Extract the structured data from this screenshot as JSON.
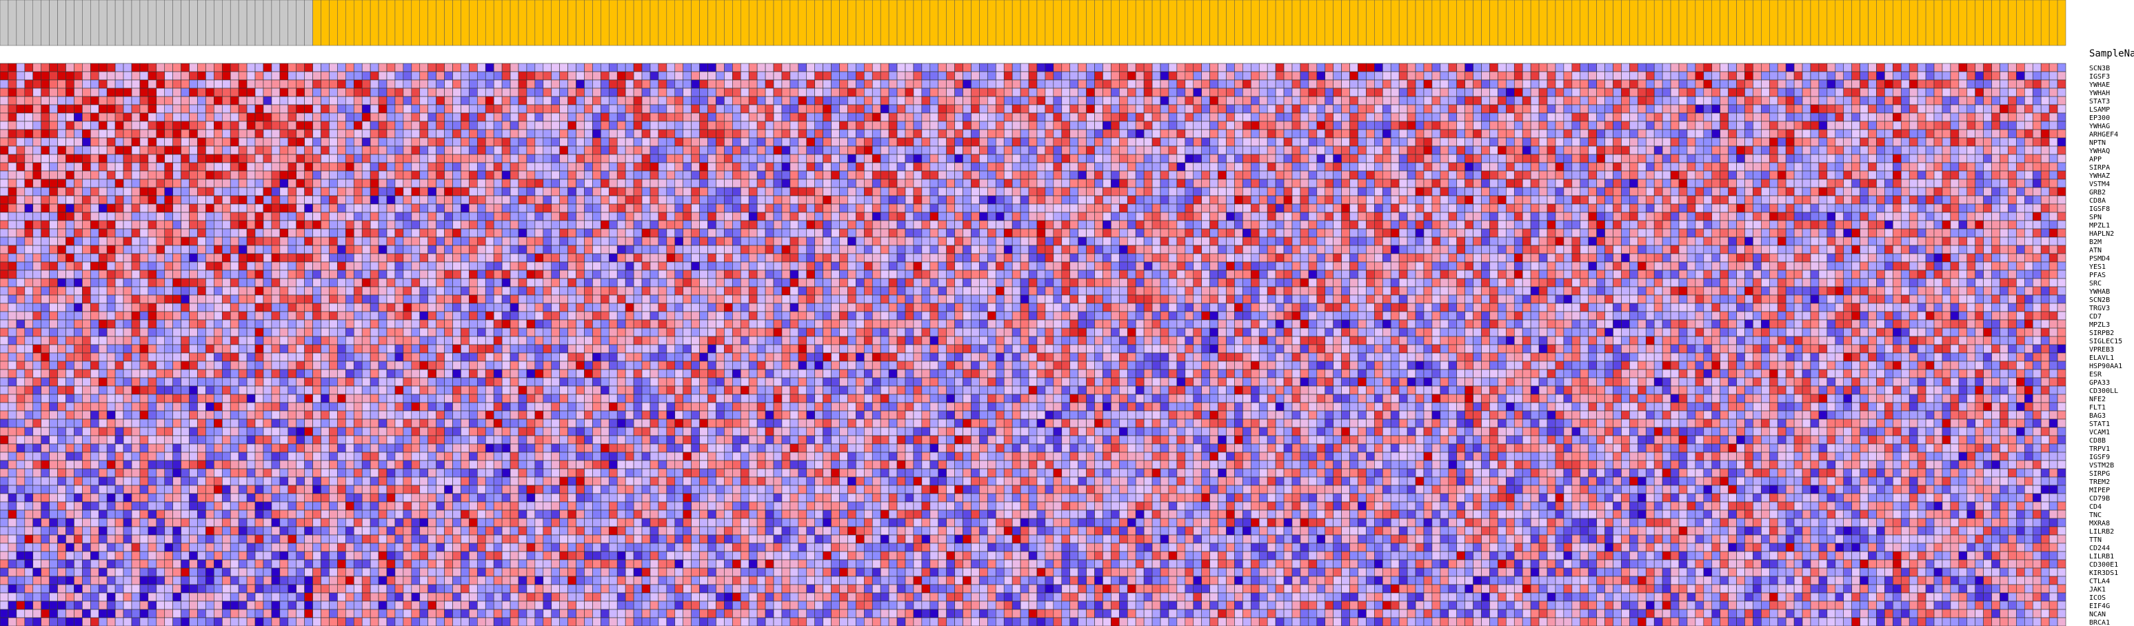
{
  "chart_data": {
    "type": "heatmap",
    "row_header_label": "SampleName",
    "rows": [
      "SCN3B",
      "IGSF3",
      "YWHAE",
      "YWHAH",
      "STAT3",
      "LSAMP",
      "EP300",
      "YWHAG",
      "ARHGEF4",
      "NPTN",
      "YWHAQ",
      "APP",
      "SIRPA",
      "YWHAZ",
      "VSTM4",
      "GRB2",
      "CD8A",
      "IGSF8",
      "SPN",
      "MPZL1",
      "HAPLN2",
      "B2M",
      "ATN",
      "PSMD4",
      "YES1",
      "PFAS",
      "SRC",
      "YWHAB",
      "SCN2B",
      "TRGV3",
      "CD7",
      "MPZL3",
      "SIRPB2",
      "SIGLEC15",
      "VPREB3",
      "ELAVL1",
      "HSP90AA1",
      "ESR",
      "GPA33",
      "CD300LL",
      "NFE2",
      "FLT1",
      "BAG3",
      "STAT1",
      "VCAM1",
      "CD8B",
      "TRPV1",
      "IGSF9",
      "VSTM2B",
      "SIRPG",
      "TREM2",
      "MIPEP",
      "CD79B",
      "CD4",
      "TNC",
      "MXRA8",
      "LILRB2",
      "TTN",
      "CD244",
      "LILRB1",
      "CD300E1",
      "KIR3DS1",
      "CTLA4",
      "JAK1",
      "ICOS",
      "EIF4G",
      "NCAN",
      "BRCA1"
    ],
    "n_columns": 251,
    "column_groups": [
      {
        "color": "#c8c8c8",
        "count": 38
      },
      {
        "color": "#ffc000",
        "count": 213
      }
    ],
    "color_scale": {
      "min": "#2a00c8",
      "low": "#8c8cff",
      "mid": "#e6c8ff",
      "high": "#ff8080",
      "max": "#d20000",
      "range": [
        -2,
        2
      ]
    },
    "grid": true
  }
}
